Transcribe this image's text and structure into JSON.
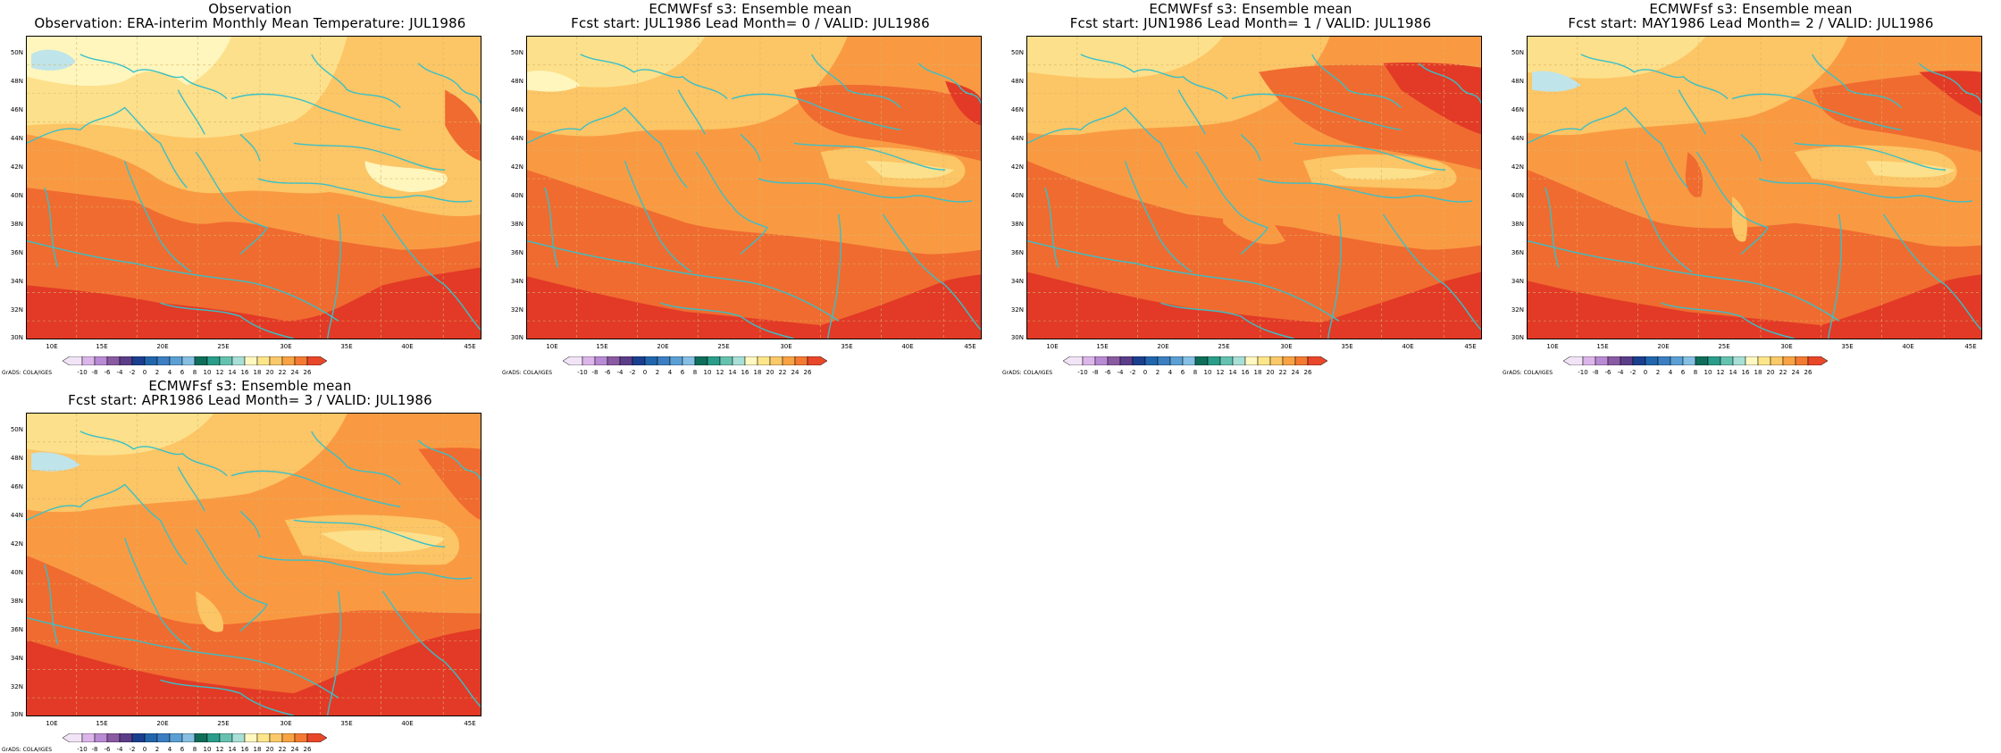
{
  "panels": [
    {
      "title_line1": "Observation",
      "title_line2": "Observation: ERA-interim Monthly Mean Temperature: JUL1986"
    },
    {
      "title_line1": "ECMWFsf s3: Ensemble mean",
      "title_line2": "Fcst start: JUL1986  Lead Month= 0 / VALID: JUL1986"
    },
    {
      "title_line1": "ECMWFsf s3: Ensemble mean",
      "title_line2": "Fcst start: JUN1986  Lead Month= 1 / VALID: JUL1986"
    },
    {
      "title_line1": "ECMWFsf s3: Ensemble mean",
      "title_line2": "Fcst start: MAY1986  Lead Month= 2 / VALID: JUL1986"
    },
    {
      "title_line1": "ECMWFsf s3: Ensemble mean",
      "title_line2": "Fcst start: APR1986  Lead Month= 3 / VALID: JUL1986"
    }
  ],
  "lat_labels": [
    "50N",
    "48N",
    "46N",
    "44N",
    "42N",
    "40N",
    "38N",
    "36N",
    "34N",
    "32N",
    "30N"
  ],
  "lon_labels": [
    "10E",
    "15E",
    "20E",
    "25E",
    "30E",
    "35E",
    "40E",
    "45E"
  ],
  "colorbar": {
    "labels": [
      "-10",
      "-8",
      "-6",
      "-4",
      "-2",
      "0",
      "2",
      "4",
      "6",
      "8",
      "10",
      "12",
      "14",
      "16",
      "18",
      "20",
      "22",
      "24",
      "26"
    ],
    "colors": [
      "#f2e4f7",
      "#dcb6ea",
      "#b98bd4",
      "#8a5aa3",
      "#5b3d8a",
      "#1b3f8f",
      "#2166ac",
      "#3b7fc2",
      "#5aa0d4",
      "#86bfe3",
      "#0e6e5a",
      "#2a9e8a",
      "#66c2b0",
      "#a8dfd6",
      "#fff8c0",
      "#fde68a",
      "#fcc96a",
      "#f9a345",
      "#f47a32",
      "#e8472a"
    ],
    "credit": "GrADS: COLA/IGES"
  },
  "legend_colors": {
    "c18": "#fff6bd",
    "c20": "#fde08b",
    "c22": "#fcc565",
    "c24": "#f99a43",
    "c26": "#f06b30",
    "c28": "#e23a26",
    "cold": "#bfe4ea",
    "coast": "#38c0c8"
  }
}
